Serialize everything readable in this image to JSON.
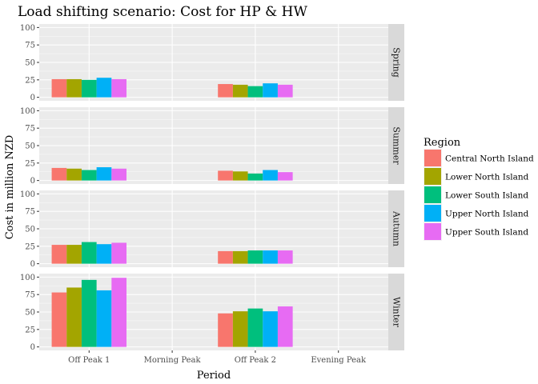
{
  "chart_data": {
    "type": "bar",
    "title": "Load shifting scenario: Cost for HP & HW",
    "xlabel": "Period",
    "ylabel": "Cost in million NZD",
    "categories": [
      "Off Peak 1",
      "Morning Peak",
      "Off Peak 2",
      "Evening Peak"
    ],
    "ylim": [
      0,
      100
    ],
    "yticks": [
      0,
      25,
      50,
      75,
      100
    ],
    "legend": {
      "title": "Region",
      "position": "right",
      "entries": [
        "Central North Island",
        "Lower North Island",
        "Lower South Island",
        "Upper North Island",
        "Upper South Island"
      ],
      "colors": [
        "#F8766D",
        "#A3A500",
        "#00BF7D",
        "#00B0F6",
        "#E76BF3"
      ]
    },
    "grid": true,
    "facets": [
      {
        "label": "Spring",
        "series": [
          {
            "name": "Central North Island",
            "values": [
              26,
              null,
              19,
              null
            ]
          },
          {
            "name": "Lower North Island",
            "values": [
              26,
              null,
              18,
              null
            ]
          },
          {
            "name": "Lower South Island",
            "values": [
              25,
              null,
              16,
              null
            ]
          },
          {
            "name": "Upper North Island",
            "values": [
              28,
              null,
              20,
              null
            ]
          },
          {
            "name": "Upper South Island",
            "values": [
              26,
              null,
              18,
              null
            ]
          }
        ]
      },
      {
        "label": "Summer",
        "series": [
          {
            "name": "Central North Island",
            "values": [
              18,
              null,
              14,
              null
            ]
          },
          {
            "name": "Lower North Island",
            "values": [
              17,
              null,
              13,
              null
            ]
          },
          {
            "name": "Lower South Island",
            "values": [
              15,
              null,
              10,
              null
            ]
          },
          {
            "name": "Upper North Island",
            "values": [
              19,
              null,
              15,
              null
            ]
          },
          {
            "name": "Upper South Island",
            "values": [
              17,
              null,
              12,
              null
            ]
          }
        ]
      },
      {
        "label": "Autumn",
        "series": [
          {
            "name": "Central North Island",
            "values": [
              27,
              null,
              18,
              null
            ]
          },
          {
            "name": "Lower North Island",
            "values": [
              27,
              null,
              18,
              null
            ]
          },
          {
            "name": "Lower South Island",
            "values": [
              31,
              null,
              19,
              null
            ]
          },
          {
            "name": "Upper North Island",
            "values": [
              28,
              null,
              19,
              null
            ]
          },
          {
            "name": "Upper South Island",
            "values": [
              30,
              null,
              19,
              null
            ]
          }
        ]
      },
      {
        "label": "Winter",
        "series": [
          {
            "name": "Central North Island",
            "values": [
              78,
              null,
              48,
              null
            ]
          },
          {
            "name": "Lower North Island",
            "values": [
              85,
              null,
              51,
              null
            ]
          },
          {
            "name": "Lower South Island",
            "values": [
              96,
              null,
              55,
              null
            ]
          },
          {
            "name": "Upper North Island",
            "values": [
              81,
              null,
              51,
              null
            ]
          },
          {
            "name": "Upper South Island",
            "values": [
              99,
              null,
              58,
              null
            ]
          }
        ]
      }
    ]
  }
}
